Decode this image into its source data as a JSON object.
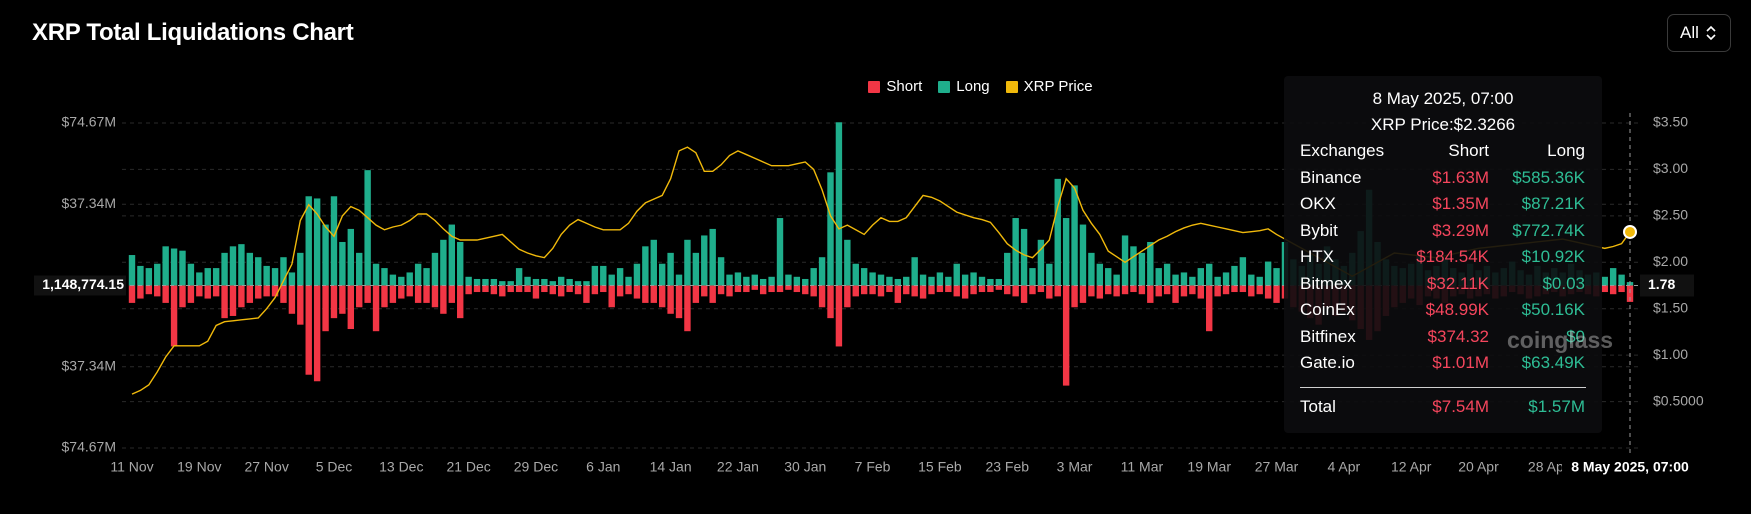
{
  "chart_data": {
    "type": "bar",
    "title": "XRP Total Liquidations Chart",
    "control": "All",
    "watermark": "coinglass",
    "categories": [
      "11 Nov",
      null,
      null,
      null,
      null,
      null,
      null,
      null,
      "19 Nov",
      null,
      null,
      null,
      null,
      null,
      null,
      null,
      "27 Nov",
      null,
      null,
      null,
      null,
      null,
      null,
      null,
      "5 Dec",
      null,
      null,
      null,
      null,
      null,
      null,
      null,
      "13 Dec",
      null,
      null,
      null,
      null,
      null,
      null,
      null,
      "21 Dec",
      null,
      null,
      null,
      null,
      null,
      null,
      null,
      "29 Dec",
      null,
      null,
      null,
      null,
      null,
      null,
      null,
      "6 Jan",
      null,
      null,
      null,
      null,
      null,
      null,
      null,
      "14 Jan",
      null,
      null,
      null,
      null,
      null,
      null,
      null,
      "22 Jan",
      null,
      null,
      null,
      null,
      null,
      null,
      null,
      "30 Jan",
      null,
      null,
      null,
      null,
      null,
      null,
      null,
      "7 Feb",
      null,
      null,
      null,
      null,
      null,
      null,
      null,
      "15 Feb",
      null,
      null,
      null,
      null,
      null,
      null,
      null,
      "23 Feb",
      null,
      null,
      null,
      null,
      null,
      null,
      null,
      "3 Mar",
      null,
      null,
      null,
      null,
      null,
      null,
      null,
      "11 Mar",
      null,
      null,
      null,
      null,
      null,
      null,
      null,
      "19 Mar",
      null,
      null,
      null,
      null,
      null,
      null,
      null,
      "27 Mar",
      null,
      null,
      null,
      null,
      null,
      null,
      null,
      "4 Apr",
      null,
      null,
      null,
      null,
      null,
      null,
      null,
      "12 Apr",
      null,
      null,
      null,
      null,
      null,
      null,
      null,
      "20 Apr",
      null,
      null,
      null,
      null,
      null,
      null,
      null,
      "28 Ap",
      null,
      null,
      null,
      null,
      null,
      null,
      null,
      null,
      null,
      "8 May 2025, 07:00"
    ],
    "series": [
      {
        "name": "Short",
        "color": "#f23645",
        "values": [
          -8,
          -6,
          -4,
          -5,
          -8,
          -28,
          -10,
          -8,
          -5,
          -6,
          -5,
          -15,
          -14,
          -10,
          -8,
          -6,
          -5,
          -5,
          -8,
          -13,
          -18,
          -41,
          -44,
          -21,
          -15,
          -13,
          -20,
          -10,
          -8,
          -21,
          -10,
          -8,
          -6,
          -5,
          -8,
          -8,
          -10,
          -13,
          -8,
          -15,
          -4,
          -3,
          -3,
          -4,
          -5,
          -3,
          -3,
          -3,
          -6,
          -3,
          -4,
          -5,
          -3,
          -4,
          -8,
          -4,
          -3,
          -10,
          -5,
          -4,
          -6,
          -8,
          -8,
          -10,
          -13,
          -15,
          -21,
          -8,
          -5,
          -8,
          -4,
          -5,
          -3,
          -3,
          -2,
          -4,
          -3,
          -3,
          -2,
          -3,
          -4,
          -5,
          -10,
          -15,
          -28,
          -10,
          -5,
          -4,
          -4,
          -5,
          -3,
          -8,
          -4,
          -5,
          -6,
          -4,
          -3,
          -3,
          -5,
          -6,
          -4,
          -3,
          -3,
          -2,
          -4,
          -5,
          -8,
          -4,
          -3,
          -6,
          -5,
          -46,
          -10,
          -8,
          -5,
          -6,
          -4,
          -5,
          -4,
          -3,
          -4,
          -8,
          -5,
          -4,
          -8,
          -5,
          -4,
          -6,
          -21,
          -5,
          -4,
          -3,
          -3,
          -5,
          -4,
          -6,
          -8,
          -6,
          -10,
          -12,
          -15,
          -18,
          -10,
          -14,
          -12,
          -16,
          -20,
          -25,
          -21,
          -14,
          -10,
          -8,
          -6,
          -9,
          -5,
          -6,
          -8,
          -5,
          -4,
          -6,
          -5,
          -4,
          -6,
          -5,
          -3,
          -4,
          -6,
          -5,
          -4,
          -3,
          -5,
          -4,
          -3,
          -4,
          -5,
          -3,
          -4,
          -3,
          -7.54
        ]
      },
      {
        "name": "Long",
        "color": "#1fae8c",
        "values": [
          14,
          9,
          8,
          10,
          18,
          17,
          16,
          10,
          6,
          8,
          8,
          15,
          18,
          19,
          15,
          13,
          9,
          8,
          13,
          6,
          15,
          41,
          40,
          28,
          41,
          20,
          26,
          15,
          53,
          10,
          8,
          5,
          4,
          6,
          10,
          8,
          15,
          21,
          28,
          20,
          4,
          3,
          3,
          3,
          2,
          2,
          8,
          4,
          3,
          3,
          2,
          4,
          3,
          2,
          2,
          9,
          9,
          5,
          8,
          4,
          10,
          18,
          21,
          10,
          15,
          5,
          21,
          15,
          23,
          26,
          13,
          5,
          6,
          4,
          5,
          3,
          4,
          31,
          5,
          4,
          3,
          8,
          13,
          52,
          75,
          21,
          10,
          8,
          6,
          5,
          4,
          3,
          4,
          13,
          5,
          4,
          6,
          4,
          10,
          5,
          6,
          4,
          3,
          3,
          15,
          31,
          26,
          8,
          21,
          10,
          49,
          31,
          46,
          28,
          15,
          10,
          8,
          5,
          23,
          18,
          15,
          20,
          8,
          10,
          5,
          6,
          4,
          8,
          10,
          4,
          6,
          9,
          13,
          5,
          4,
          11,
          8,
          20,
          12,
          9,
          14,
          10,
          18,
          12,
          9,
          15,
          25,
          44,
          20,
          12,
          9,
          8,
          10,
          14,
          7,
          9,
          12,
          8,
          6,
          10,
          7,
          9,
          6,
          8,
          11,
          7,
          5,
          9,
          6,
          8,
          6,
          10,
          7,
          5,
          6,
          4,
          8,
          5,
          1.57
        ]
      },
      {
        "name": "XRP Price",
        "color": "#f0b90b",
        "type": "line",
        "axis": "y2",
        "values": [
          0.58,
          0.62,
          0.68,
          0.82,
          0.98,
          1.1,
          1.1,
          1.1,
          1.1,
          1.15,
          1.32,
          1.36,
          1.37,
          1.38,
          1.39,
          1.4,
          1.5,
          1.62,
          1.8,
          1.98,
          2.45,
          2.62,
          2.52,
          2.38,
          2.28,
          2.5,
          2.6,
          2.56,
          2.48,
          2.4,
          2.35,
          2.38,
          2.4,
          2.45,
          2.52,
          2.52,
          2.45,
          2.36,
          2.28,
          2.24,
          2.24,
          2.24,
          2.26,
          2.28,
          2.3,
          2.22,
          2.14,
          2.1,
          2.07,
          2.05,
          2.15,
          2.3,
          2.4,
          2.46,
          2.42,
          2.38,
          2.35,
          2.35,
          2.35,
          2.42,
          2.55,
          2.64,
          2.68,
          2.72,
          2.9,
          3.2,
          3.24,
          3.18,
          2.98,
          2.98,
          3.05,
          3.15,
          3.2,
          3.16,
          3.12,
          3.08,
          3.04,
          3.04,
          3.04,
          3.06,
          3.08,
          3.0,
          2.78,
          2.5,
          2.36,
          2.4,
          2.35,
          2.3,
          2.4,
          2.48,
          2.44,
          2.44,
          2.48,
          2.6,
          2.72,
          2.7,
          2.66,
          2.6,
          2.54,
          2.51,
          2.48,
          2.46,
          2.43,
          2.32,
          2.2,
          2.13,
          2.08,
          2.05,
          2.14,
          2.24,
          2.6,
          2.9,
          2.8,
          2.56,
          2.42,
          2.3,
          2.12,
          2.06,
          2.0,
          2.06,
          2.12,
          2.18,
          2.24,
          2.28,
          2.33,
          2.37,
          2.4,
          2.42,
          2.4,
          2.38,
          2.36,
          2.34,
          2.32,
          2.33,
          2.34,
          2.36,
          2.3,
          2.25,
          2.2,
          2.15,
          2.1,
          2.05,
          2.0,
          1.95,
          1.9,
          1.85,
          1.9,
          1.95,
          2.0,
          2.05,
          2.1,
          2.09,
          2.08,
          2.07,
          2.06,
          2.05,
          2.07,
          2.09,
          2.11,
          2.13,
          2.15,
          2.16,
          2.17,
          2.18,
          2.19,
          2.2,
          2.21,
          2.22,
          2.23,
          2.24,
          2.25,
          2.23,
          2.21,
          2.19,
          2.17,
          2.15,
          2.17,
          2.2,
          2.3266
        ]
      }
    ],
    "ylim": [
      -74.67,
      74.67
    ],
    "yticks": [
      {
        "value": 74.67,
        "label": "$74.67M"
      },
      {
        "value": 37.34,
        "label": "$37.34M"
      },
      {
        "value": -37.34,
        "label": "$37.34M"
      },
      {
        "value": -74.67,
        "label": "$74.67M"
      }
    ],
    "y2lim": [
      0,
      3.5
    ],
    "y2ticks": [
      {
        "value": 3.5,
        "label": "$3.50"
      },
      {
        "value": 3,
        "label": "$3.00"
      },
      {
        "value": 2.5,
        "label": "$2.50"
      },
      {
        "value": 2,
        "label": "$2.00"
      },
      {
        "value": 1.5,
        "label": "$1.50"
      },
      {
        "value": 1,
        "label": "$1.00"
      },
      {
        "value": 0.5,
        "label": "$0.5000"
      }
    ],
    "grid": true,
    "crosshair": {
      "y_label": "1,148,774.15",
      "y2_label": "1.78"
    },
    "tooltip": {
      "title": "8 May 2025, 07:00",
      "price": "XRP Price:$2.3266",
      "header": [
        "Exchanges",
        "Short",
        "Long"
      ],
      "rows": [
        [
          "Binance",
          "$1.63M",
          "$585.36K"
        ],
        [
          "OKX",
          "$1.35M",
          "$87.21K"
        ],
        [
          "Bybit",
          "$3.29M",
          "$772.74K"
        ],
        [
          "HTX",
          "$184.54K",
          "$10.92K"
        ],
        [
          "Bitmex",
          "$32.11K",
          "$0.03"
        ],
        [
          "CoinEx",
          "$48.99K",
          "$50.16K"
        ],
        [
          "Bitfinex",
          "$374.32",
          "$0"
        ],
        [
          "Gate.io",
          "$1.01M",
          "$63.49K"
        ]
      ],
      "total": [
        "Total",
        "$7.54M",
        "$1.57M"
      ]
    }
  }
}
